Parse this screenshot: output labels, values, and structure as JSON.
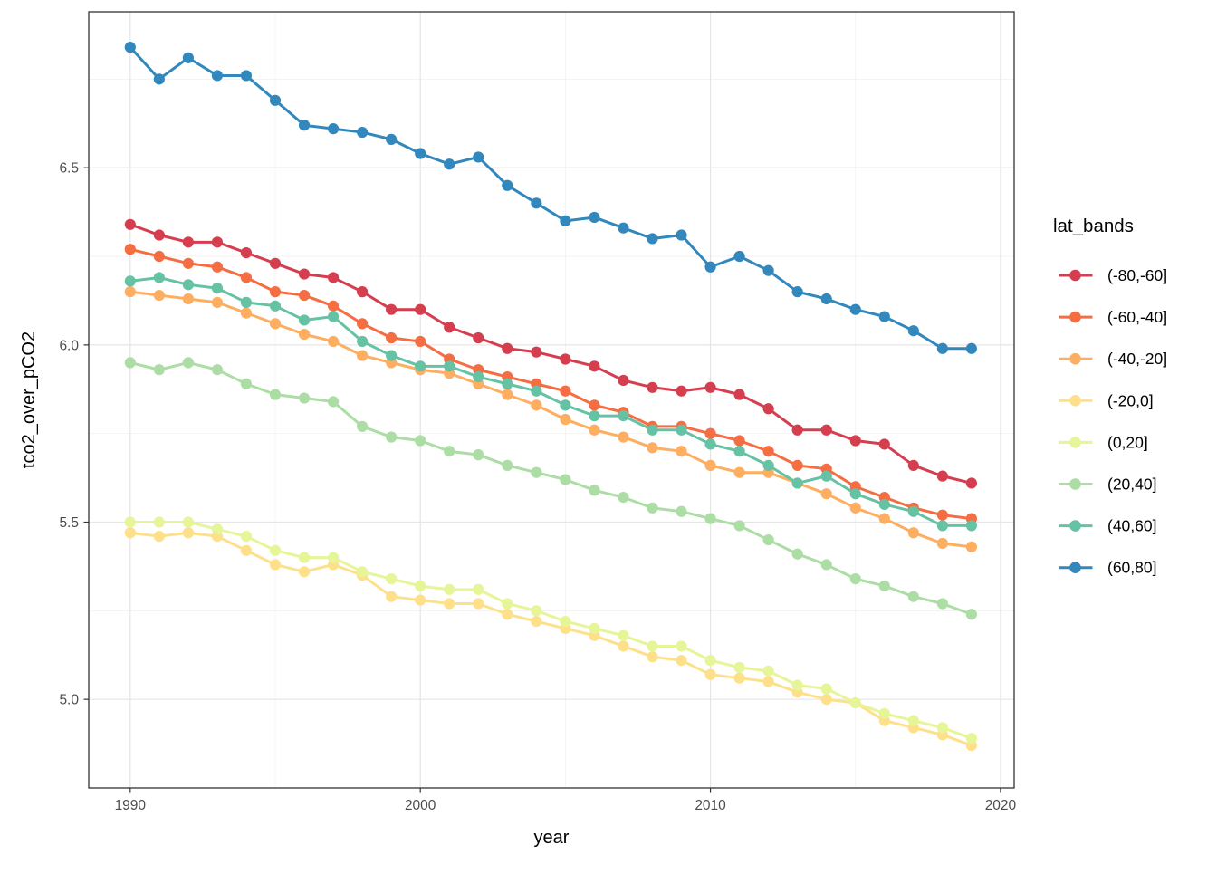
{
  "chart_data": {
    "type": "line",
    "title": "",
    "xlabel": "year",
    "ylabel": "tco2_over_pCO2",
    "legend_title": "lat_bands",
    "legend_position": "right",
    "grid": "major+minor",
    "xlim": [
      1988.57,
      2020.47
    ],
    "ylim": [
      4.75,
      6.94
    ],
    "x_ticks": [
      1990,
      2000,
      2010,
      2020
    ],
    "x_tick_labels": [
      "1990",
      "2000",
      "2010",
      "2020"
    ],
    "x_minor_ticks": [
      1995,
      2005,
      2015
    ],
    "y_ticks": [
      5.0,
      5.5,
      6.0,
      6.5
    ],
    "y_tick_labels": [
      "5.0",
      "5.5",
      "6.0",
      "6.5"
    ],
    "y_minor_ticks": [
      5.25,
      5.75,
      6.25,
      6.75
    ],
    "x": [
      1990,
      1991,
      1992,
      1993,
      1994,
      1995,
      1996,
      1997,
      1998,
      1999,
      2000,
      2001,
      2002,
      2003,
      2004,
      2005,
      2006,
      2007,
      2008,
      2009,
      2010,
      2011,
      2012,
      2013,
      2014,
      2015,
      2016,
      2017,
      2018,
      2019
    ],
    "series": [
      {
        "name": "(-80,-60]",
        "color": "#D53E4F",
        "values": [
          6.34,
          6.31,
          6.29,
          6.29,
          6.26,
          6.23,
          6.2,
          6.19,
          6.15,
          6.1,
          6.1,
          6.05,
          6.02,
          5.99,
          5.98,
          5.96,
          5.94,
          5.9,
          5.88,
          5.87,
          5.88,
          5.86,
          5.82,
          5.76,
          5.76,
          5.73,
          5.72,
          5.66,
          5.63,
          5.61
        ]
      },
      {
        "name": "(-60,-40]",
        "color": "#F46D43",
        "values": [
          6.27,
          6.25,
          6.23,
          6.22,
          6.19,
          6.15,
          6.14,
          6.11,
          6.06,
          6.02,
          6.01,
          5.96,
          5.93,
          5.91,
          5.89,
          5.87,
          5.83,
          5.81,
          5.77,
          5.77,
          5.75,
          5.73,
          5.7,
          5.66,
          5.65,
          5.6,
          5.57,
          5.54,
          5.52,
          5.51
        ]
      },
      {
        "name": "(-40,-20]",
        "color": "#FDAE61",
        "values": [
          6.15,
          6.14,
          6.13,
          6.12,
          6.09,
          6.06,
          6.03,
          6.01,
          5.97,
          5.95,
          5.93,
          5.92,
          5.89,
          5.86,
          5.83,
          5.79,
          5.76,
          5.74,
          5.71,
          5.7,
          5.66,
          5.64,
          5.64,
          5.61,
          5.58,
          5.54,
          5.51,
          5.47,
          5.44,
          5.43
        ]
      },
      {
        "name": "(-20,0]",
        "color": "#FEE08B",
        "values": [
          5.47,
          5.46,
          5.47,
          5.46,
          5.42,
          5.38,
          5.36,
          5.38,
          5.35,
          5.29,
          5.28,
          5.27,
          5.27,
          5.24,
          5.22,
          5.2,
          5.18,
          5.15,
          5.12,
          5.11,
          5.07,
          5.06,
          5.05,
          5.02,
          5.0,
          4.99,
          4.94,
          4.92,
          4.9,
          4.87
        ]
      },
      {
        "name": "(0,20]",
        "color": "#E6F598",
        "values": [
          5.5,
          5.5,
          5.5,
          5.48,
          5.46,
          5.42,
          5.4,
          5.4,
          5.36,
          5.34,
          5.32,
          5.31,
          5.31,
          5.27,
          5.25,
          5.22,
          5.2,
          5.18,
          5.15,
          5.15,
          5.11,
          5.09,
          5.08,
          5.04,
          5.03,
          4.99,
          4.96,
          4.94,
          4.92,
          4.89
        ]
      },
      {
        "name": "(20,40]",
        "color": "#ABDDA4",
        "values": [
          5.95,
          5.93,
          5.95,
          5.93,
          5.89,
          5.86,
          5.85,
          5.84,
          5.77,
          5.74,
          5.73,
          5.7,
          5.69,
          5.66,
          5.64,
          5.62,
          5.59,
          5.57,
          5.54,
          5.53,
          5.51,
          5.49,
          5.45,
          5.41,
          5.38,
          5.34,
          5.32,
          5.29,
          5.27,
          5.24
        ]
      },
      {
        "name": "(40,60]",
        "color": "#66C2A5",
        "values": [
          6.18,
          6.19,
          6.17,
          6.16,
          6.12,
          6.11,
          6.07,
          6.08,
          6.01,
          5.97,
          5.94,
          5.94,
          5.91,
          5.89,
          5.87,
          5.83,
          5.8,
          5.8,
          5.76,
          5.76,
          5.72,
          5.7,
          5.66,
          5.61,
          5.63,
          5.58,
          5.55,
          5.53,
          5.49,
          5.49
        ]
      },
      {
        "name": "(60,80]",
        "color": "#3288BD",
        "values": [
          6.84,
          6.75,
          6.81,
          6.76,
          6.76,
          6.69,
          6.62,
          6.61,
          6.6,
          6.58,
          6.54,
          6.51,
          6.53,
          6.45,
          6.4,
          6.35,
          6.36,
          6.33,
          6.3,
          6.31,
          6.22,
          6.25,
          6.21,
          6.15,
          6.13,
          6.1,
          6.08,
          6.04,
          5.99,
          5.99
        ]
      }
    ],
    "theme": {
      "background": "#FFFFFF",
      "panel_background": "#FFFFFF",
      "panel_border_color": "#333333",
      "grid_major_color": "#E5E5E5",
      "grid_minor_color": "#EFEFEF",
      "tick_mark_color": "#333333",
      "tick_label_color": "#4D4D4D",
      "axis_title_color": "#000000",
      "legend_text_color": "#000000"
    }
  }
}
